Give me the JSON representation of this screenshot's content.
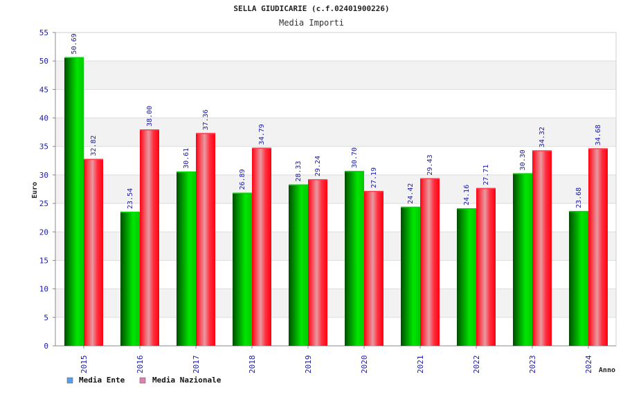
{
  "chart_data": {
    "type": "bar",
    "title": "SELLA GIUDICARIE (c.f.02401900226)",
    "subtitle": "Media Importi",
    "xlabel": "Anno",
    "ylabel": "Euro",
    "ylim": [
      0,
      55
    ],
    "yticks": [
      "0",
      "5",
      "10",
      "15",
      "20",
      "25",
      "30",
      "35",
      "40",
      "45",
      "50",
      "55"
    ],
    "categories": [
      "2015",
      "2016",
      "2017",
      "2018",
      "2019",
      "2020",
      "2021",
      "2022",
      "2023",
      "2024"
    ],
    "series": [
      {
        "name": "Media Ente",
        "values": [
          50.69,
          23.54,
          30.61,
          26.89,
          28.33,
          30.7,
          24.42,
          24.16,
          30.3,
          23.68
        ],
        "labels": [
          "50.69",
          "23.54",
          "30.61",
          "26.89",
          "28.33",
          "30.70",
          "24.42",
          "24.16",
          "30.30",
          "23.68"
        ],
        "color": "#00c000",
        "legend_color": "#5aa0e8"
      },
      {
        "name": "Media Nazionale",
        "values": [
          32.82,
          38.0,
          37.36,
          34.79,
          29.24,
          27.19,
          29.43,
          27.71,
          34.32,
          34.68
        ],
        "labels": [
          "32.82",
          "38.00",
          "37.36",
          "34.79",
          "29.24",
          "27.19",
          "29.43",
          "27.71",
          "34.32",
          "34.68"
        ],
        "color": "#ff1020",
        "legend_color": "#e080b0"
      }
    ],
    "grid": true,
    "legend_position": "bottom-left"
  }
}
